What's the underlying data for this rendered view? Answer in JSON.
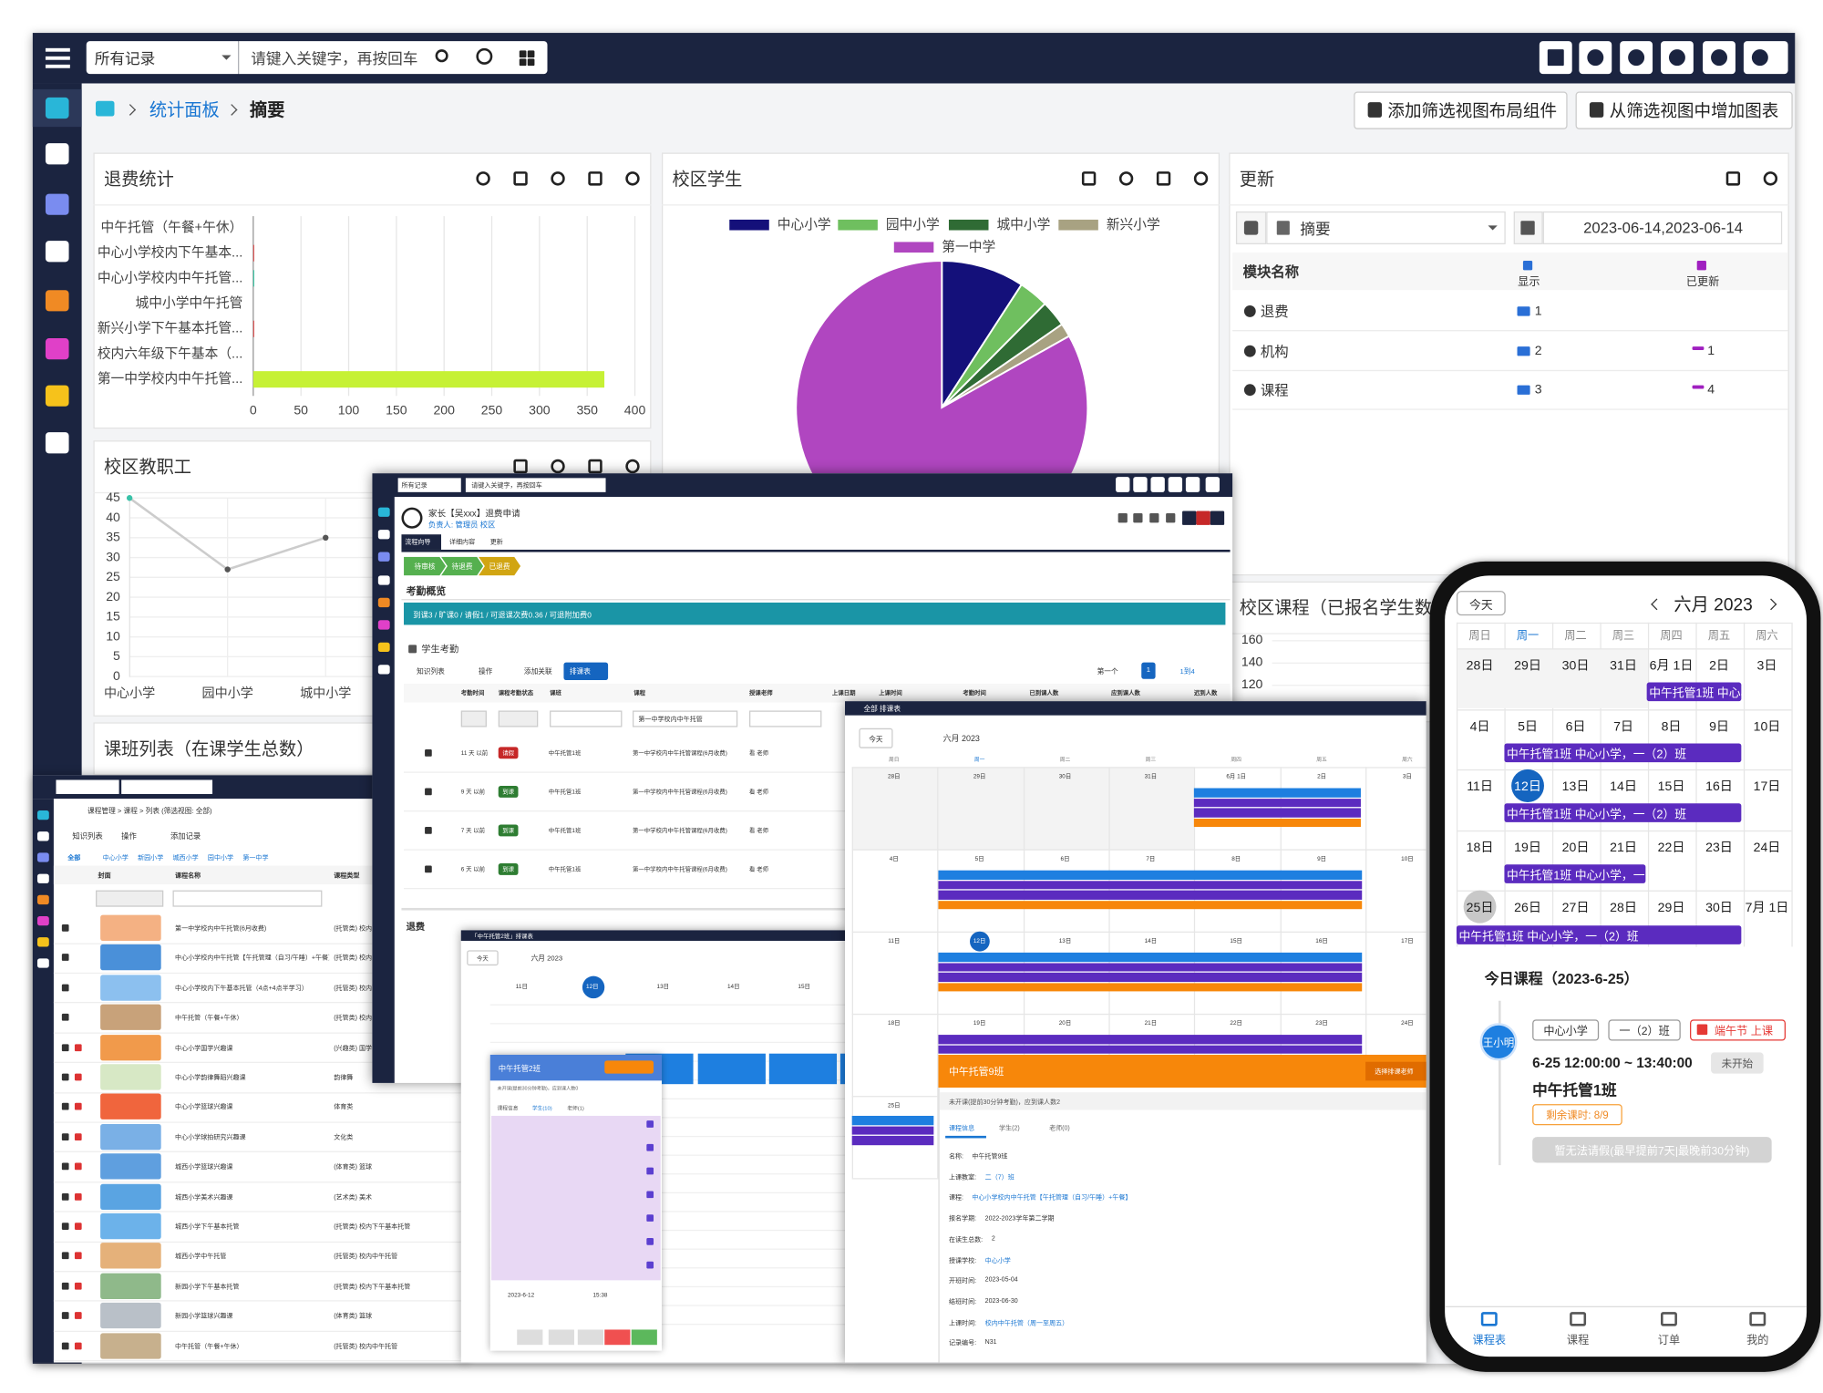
{
  "topbar": {
    "scope": "所有记录",
    "search": "请键入关键字，再按回车"
  },
  "breadcrumb": {
    "section": "统计面板",
    "page": "摘要"
  },
  "actions": [
    "添加筛选视图布局组件",
    "从筛选视图中增加图表"
  ],
  "refund": {
    "type": "bar",
    "title": "退费统计",
    "categories": [
      "中午托管（午餐+午休）",
      "中心小学校内下午基本...",
      "中心小学校内中午托管...",
      "城中小学中午托管",
      "新兴小学下午基本托管...",
      "校内六年级下午基本（...",
      "第一中学校内中午托管..."
    ],
    "values": [
      0,
      1,
      1,
      0,
      1,
      0,
      368
    ],
    "colors": [
      "#c6f135",
      "#e04848",
      "#2ec4a0",
      "#c6f135",
      "#e04848",
      "#c6f135",
      "#c6f135"
    ],
    "xlim": [
      0,
      400
    ],
    "xticks": [
      0,
      50,
      100,
      150,
      200,
      250,
      300,
      350,
      400
    ],
    "grid": true
  },
  "campus_students": {
    "type": "pie",
    "title": "校区学生",
    "series": [
      {
        "name": "中心小学",
        "color": "#14107a",
        "value": 9.2
      },
      {
        "name": "园中小学",
        "color": "#6fbf5f",
        "value": 3.3
      },
      {
        "name": "城中小学",
        "color": "#2f6b34",
        "value": 2.9
      },
      {
        "name": "新兴小学",
        "color": "#a8a282",
        "value": 1.5
      },
      {
        "name": "第一中学",
        "color": "#b046c0",
        "value": 83.1
      }
    ]
  },
  "staff": {
    "type": "line",
    "title": "校区教职工",
    "categories": [
      "中心小学",
      "园中小学",
      "城中小学"
    ],
    "values": [
      45,
      27,
      35
    ],
    "color": "#cccccc",
    "ylim": [
      0,
      45
    ],
    "yticks": [
      0,
      5,
      10,
      15,
      20,
      25,
      30,
      35,
      40,
      45
    ],
    "grid": true
  },
  "updates": {
    "title": "更新",
    "view": "摘要",
    "date_range": "2023-06-14,2023-06-14",
    "columns": [
      "模块名称",
      "显示",
      "已更新"
    ],
    "rows": [
      {
        "module": "退费",
        "shown": 1
      },
      {
        "module": "机构",
        "shown": 2,
        "updated": 1
      },
      {
        "module": "课程",
        "shown": 3,
        "updated": 4
      }
    ]
  },
  "course_students": {
    "title": "校区课程（已报名学生数）",
    "yticks": [
      160,
      140,
      120
    ]
  },
  "class_list": {
    "title": "课班列表（在课学生总数）"
  },
  "refund_window": {
    "title": "家长【吴xxx】退费申请",
    "owner": "负责人: 管理员 校区",
    "tabs": [
      "流程向导",
      "详细内容",
      "更新"
    ],
    "steps": [
      "待审核",
      "待退费",
      "已退费"
    ],
    "overview": "考勤概览",
    "banner": "到课3 / 旷课0 / 请假1 / 可退课次费0.36 / 可退附加费0",
    "attendance": "学生考勤",
    "toolbar": [
      "知识列表",
      "操作",
      "添加关联",
      "排课表"
    ],
    "pager": [
      "第一个",
      "1",
      "1到4"
    ],
    "columns": [
      "考勤时间",
      "课程考勤状态",
      "课班",
      "课程",
      "授课老师",
      "上课日期",
      "上课时间",
      "考勤时间",
      "已到课人数",
      "应到课人数",
      "迟到人数"
    ],
    "filter": "第一中学校内中午托管",
    "rows": [
      {
        "when": "11 天 以前",
        "status": "请假",
        "class": "中午托管1班",
        "course": "第一中学校内中午托管课程(6月收费)",
        "teacher": "看 老师"
      },
      {
        "when": "9 天 以前",
        "status": "到课",
        "class": "中午托管1班",
        "course": "第一中学校内中午托管课程(6月收费)",
        "teacher": "看 老师"
      },
      {
        "when": "7 天 以前",
        "status": "到课",
        "class": "中午托管1班",
        "course": "第一中学校内中午托管课程(6月收费)",
        "teacher": "看 老师"
      },
      {
        "when": "6 天 以前",
        "status": "到课",
        "class": "中午托管1班",
        "course": "第一中学校内中午托管课程(6月收费)",
        "teacher": "看 老师"
      }
    ],
    "section": "退费"
  },
  "list_window": {
    "breadcrumb": "课程管理 > 课程 > 列表 (筛选视图: 全部)",
    "toolbar": [
      "知识列表",
      "操作",
      "添加记录"
    ],
    "tabs": [
      "全部",
      "中心小学",
      "新园小学",
      "城西小学",
      "园中小学",
      "第一中学"
    ],
    "columns": [
      "封面",
      "课程名称",
      "课程类型"
    ],
    "rows": [
      {
        "name": "第一中学校内中午托管(6月收费)",
        "kind": "(托管类) 校内中午托管"
      },
      {
        "name": "中心小学校内中午托管【午托管理（自习/午睡）+午餐】",
        "kind": "(托管类) 校内中午托管"
      },
      {
        "name": "中心小学校内下午基本托管（4点+4点半学习）",
        "kind": "(托管类) 校内下午基本托管"
      },
      {
        "name": "中午托管（午餐+午休）",
        "kind": "(托管类) 校内中午托管"
      },
      {
        "name": "中心小学国学兴趣课",
        "kind": "(兴趣类) 国学"
      },
      {
        "name": "中心小学韵律舞蹈兴趣课",
        "kind": "韵律舞"
      },
      {
        "name": "中心小学篮球兴趣课",
        "kind": "体育类"
      },
      {
        "name": "中心小学球拍研究兴趣课",
        "kind": "文化类"
      },
      {
        "name": "城西小学篮球兴趣课",
        "kind": "(体育类) 篮球"
      },
      {
        "name": "城西小学美术兴趣课",
        "kind": "(艺术类) 美术"
      },
      {
        "name": "城西小学下午基本托管",
        "kind": "(托管类) 校内下午基本托管"
      },
      {
        "name": "城西小学中午托管",
        "kind": "(托管类) 校内中午托管"
      },
      {
        "name": "新园小学下午基本托管",
        "kind": "(托管类) 校内下午基本托管"
      },
      {
        "name": "新园小学篮球兴趣课",
        "kind": "(体育类) 篮球"
      },
      {
        "name": "中午托管（午餐+午休）",
        "kind": "(托管类) 校内中午托管"
      }
    ]
  },
  "schedule_window": {
    "title": "「中午托管2班」排课表",
    "today": "今天",
    "month": "六月 2023",
    "dates": [
      "11日",
      "12日",
      "13日",
      "14日",
      "15日"
    ],
    "popup": {
      "title": "中午托管2班",
      "info": "未开课(提前30分钟考勤)，应到课人数0",
      "tabs": [
        "课程信息",
        "学生(10)",
        "老师(1)"
      ],
      "date": "2023-6-12",
      "time": "15:38"
    }
  },
  "calendar_window": {
    "title": "全部 排课表",
    "today": "今天",
    "month": "六月 2023",
    "weekdays": [
      "周日",
      "周一",
      "周二",
      "周三",
      "周四",
      "周五",
      "周六"
    ],
    "weeks": [
      [
        "28日",
        "29日",
        "30日",
        "31日",
        "6月 1日",
        "2日",
        "3日"
      ],
      [
        "4日",
        "5日",
        "6日",
        "7日",
        "8日",
        "9日",
        "10日"
      ],
      [
        "11日",
        "12日",
        "13日",
        "14日",
        "15日",
        "16日",
        "17日"
      ],
      [
        "18日",
        "19日",
        "20日",
        "21日",
        "22日",
        "23日",
        "24日"
      ],
      [
        "25日",
        "26日",
        "27日",
        "28日",
        "29日",
        "30日",
        "7月 1日"
      ]
    ],
    "popup": {
      "title": "中午托管9班",
      "button": "选择排课老师",
      "info": "未开课(提前30分钟考勤)，应到课人数2",
      "tabs": [
        "课程信息",
        "学生(2)",
        "老师(0)"
      ],
      "details": [
        {
          "label": "名称:",
          "value": "中午托管9班"
        },
        {
          "label": "上课教室:",
          "value": "二（7）班"
        },
        {
          "label": "课程:",
          "value": "中心小学校内中午托管【午托管理（自习/午睡）+午餐】"
        },
        {
          "label": "报名学期:",
          "value": "2022-2023学年第二学期"
        },
        {
          "label": "在读生总数:",
          "value": "2"
        },
        {
          "label": "授课学校:",
          "value": "中心小学"
        },
        {
          "label": "开班时间:",
          "value": "2023-05-04"
        },
        {
          "label": "结班时间:",
          "value": "2023-06-30"
        },
        {
          "label": "上课时间:",
          "value": "校内中午托管（周一至周五）"
        },
        {
          "label": "记录编号:",
          "value": "N31"
        }
      ]
    }
  },
  "phone": {
    "today": "今天",
    "month": "六月 2023",
    "weekdays": [
      "周日",
      "周一",
      "周二",
      "周三",
      "周四",
      "周五",
      "周六"
    ],
    "weeks": [
      [
        "28日",
        "29日",
        "30日",
        "31日",
        "6月 1日",
        "2日",
        "3日"
      ],
      [
        "4日",
        "5日",
        "6日",
        "7日",
        "8日",
        "9日",
        "10日"
      ],
      [
        "11日",
        "12日",
        "13日",
        "14日",
        "15日",
        "16日",
        "17日"
      ],
      [
        "18日",
        "19日",
        "20日",
        "21日",
        "22日",
        "23日",
        "24日"
      ],
      [
        "25日",
        "26日",
        "27日",
        "28日",
        "29日",
        "30日",
        "7月 1日"
      ]
    ],
    "event": "中午托管1班 中心小学，一（2）班",
    "today_title": "今日课程（2023-6-25）",
    "student": "王小明",
    "chips": [
      "中心小学",
      "一（2）班",
      "端午节 上课"
    ],
    "time": "6-25 12:00:00 ~ 13:40:00",
    "status": "未开始",
    "course": "中午托管1班",
    "remaining": "剩余课时: 8/9",
    "leave": "暂无法请假(最早提前7天|最晚前30分钟)",
    "tabs": [
      "课程表",
      "课程",
      "订单",
      "我的"
    ]
  }
}
